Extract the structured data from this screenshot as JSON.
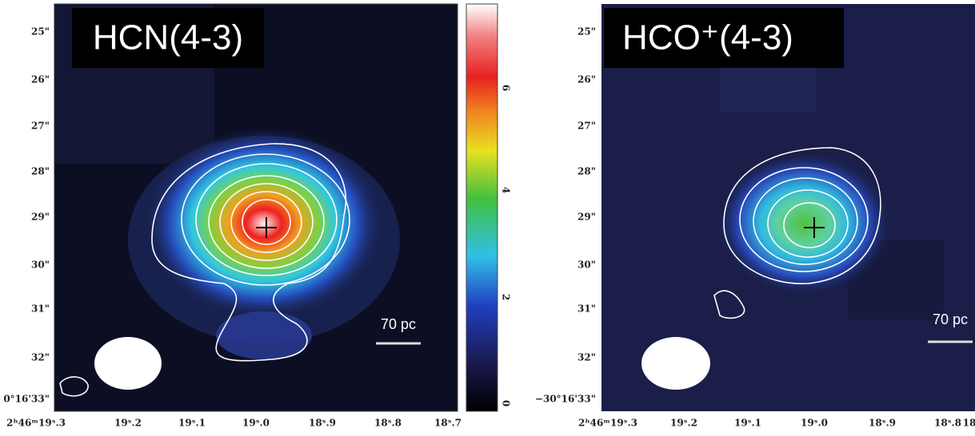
{
  "panels": [
    {
      "title": "HCN(4-3)",
      "yticks": [
        "25\"",
        "26\"",
        "27\"",
        "28\"",
        "29\"",
        "30\"",
        "31\"",
        "32\"",
        "0°16'33\""
      ],
      "xticks": [
        "2ʰ46ᵐ19ˢ.3",
        "19ˢ.2",
        "19ˢ.1",
        "19ˢ.0",
        "18ˢ.9",
        "18ˢ.8",
        "18ˢ.7"
      ],
      "scale_label": "70 pc"
    },
    {
      "title": "HCO⁺(4-3)",
      "yticks": [
        "25\"",
        "26\"",
        "27\"",
        "28\"",
        "29\"",
        "30\"",
        "31\"",
        "32\"",
        "−30°16'33\""
      ],
      "xticks": [
        "2ʰ46ᵐ19ˢ.3",
        "19ˢ.2",
        "19ˢ.1",
        "19ˢ.0",
        "18ˢ.9",
        "18ˢ.8",
        "18"
      ],
      "scale_label": "70 pc"
    }
  ],
  "colorbar": {
    "ticks": [
      "0",
      "2",
      "4",
      "6"
    ]
  }
}
